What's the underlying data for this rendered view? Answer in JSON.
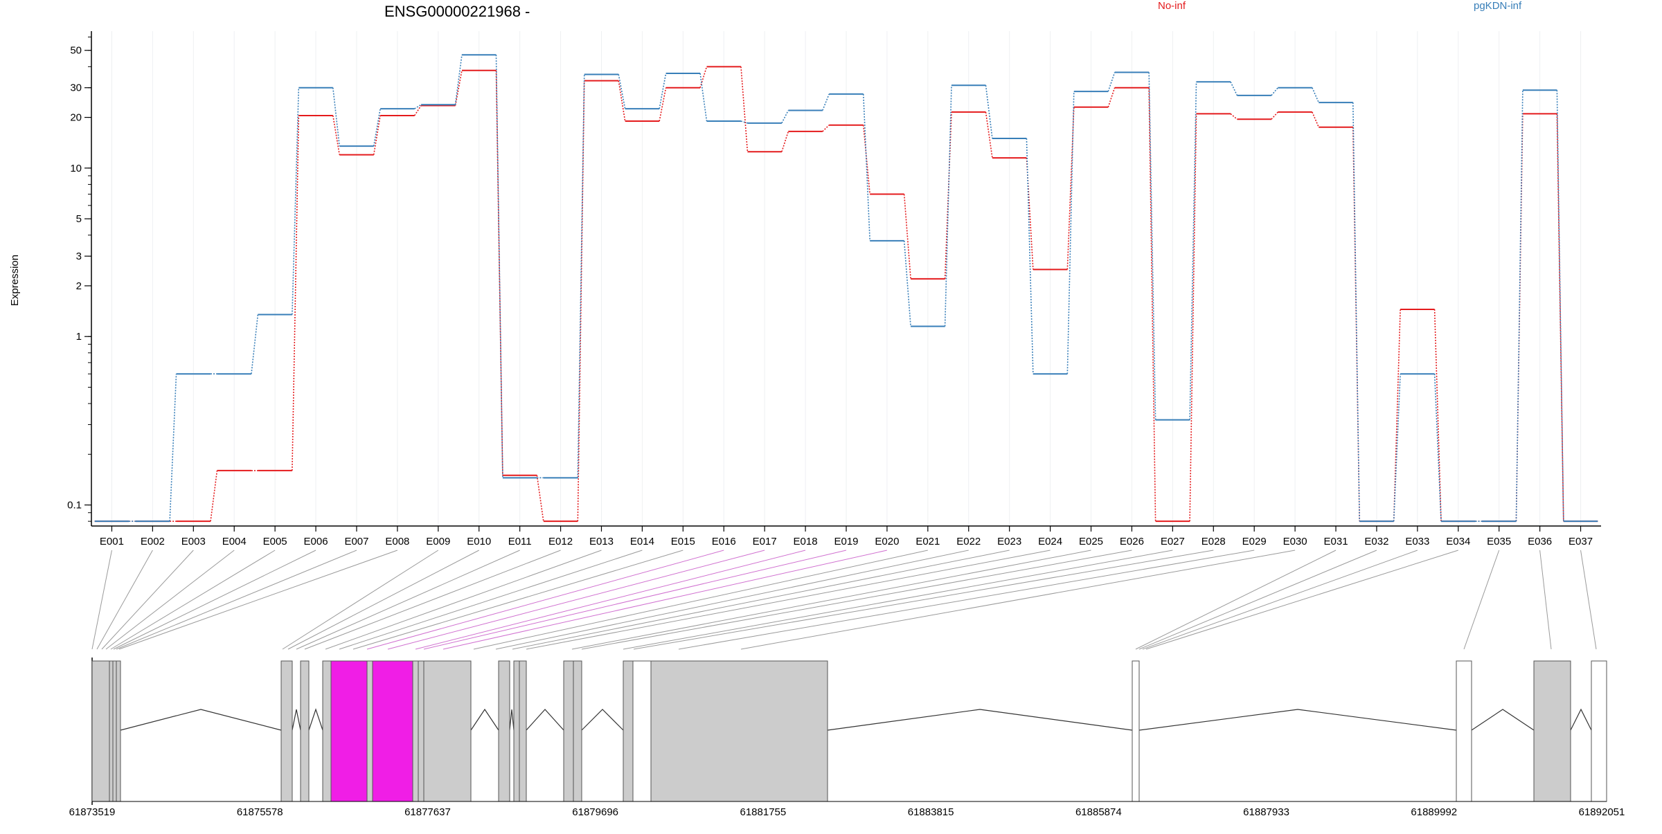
{
  "chart_data": {
    "type": "line",
    "title": "ENSG00000221968 -",
    "ylabel": "Expression",
    "yscale": "log",
    "ylim": [
      0.075,
      65
    ],
    "yticks": [
      0.1,
      1,
      2,
      3,
      5,
      10,
      20,
      30,
      50
    ],
    "grid": "vertical, light",
    "legend_position": "top",
    "categories": [
      "E001",
      "E002",
      "E003",
      "E004",
      "E005",
      "E006",
      "E007",
      "E008",
      "E009",
      "E010",
      "E011",
      "E012",
      "E013",
      "E014",
      "E015",
      "E016",
      "E017",
      "E018",
      "E019",
      "E020",
      "E021",
      "E022",
      "E023",
      "E024",
      "E025",
      "E026",
      "E027",
      "E028",
      "E029",
      "E030",
      "E031",
      "E032",
      "E033",
      "E034",
      "E035",
      "E036",
      "E037"
    ],
    "series": [
      {
        "name": "No-inf",
        "color": "#e41a1c",
        "values": [
          0.08,
          0.08,
          0.08,
          0.16,
          0.16,
          20.5,
          12,
          20.5,
          23.5,
          38,
          0.15,
          0.08,
          33,
          19,
          30,
          40,
          12.5,
          16.5,
          18,
          7,
          2.2,
          21.5,
          11.5,
          2.5,
          23,
          30,
          0.08,
          21,
          19.5,
          21.5,
          17.5,
          0.08,
          1.45,
          0.08,
          0.08,
          21,
          0.08
        ]
      },
      {
        "name": "pgKDN-inf",
        "color": "#377eb8",
        "values": [
          0.08,
          0.08,
          0.6,
          0.6,
          1.35,
          30,
          13.5,
          22.5,
          23.8,
          47,
          0.145,
          0.145,
          36,
          22.5,
          36.5,
          19,
          18.5,
          22,
          27.5,
          3.7,
          1.15,
          31,
          15,
          0.6,
          28.5,
          37,
          0.32,
          32.5,
          27,
          30,
          24.5,
          0.08,
          0.6,
          0.08,
          0.08,
          29,
          0.08
        ]
      }
    ],
    "gene_model": {
      "start_label": "61873519",
      "coordinate_ticks": [
        "61873519",
        "61875578",
        "61877637",
        "61879696",
        "61881755",
        "61883815",
        "61885874",
        "61887933",
        "61889992",
        "61892051"
      ],
      "exon_fill_gray": "#cccccc",
      "exon_fill_highlight": "#f01ee6",
      "highlight_exons": [
        "E016",
        "E017",
        "E018"
      ]
    }
  }
}
